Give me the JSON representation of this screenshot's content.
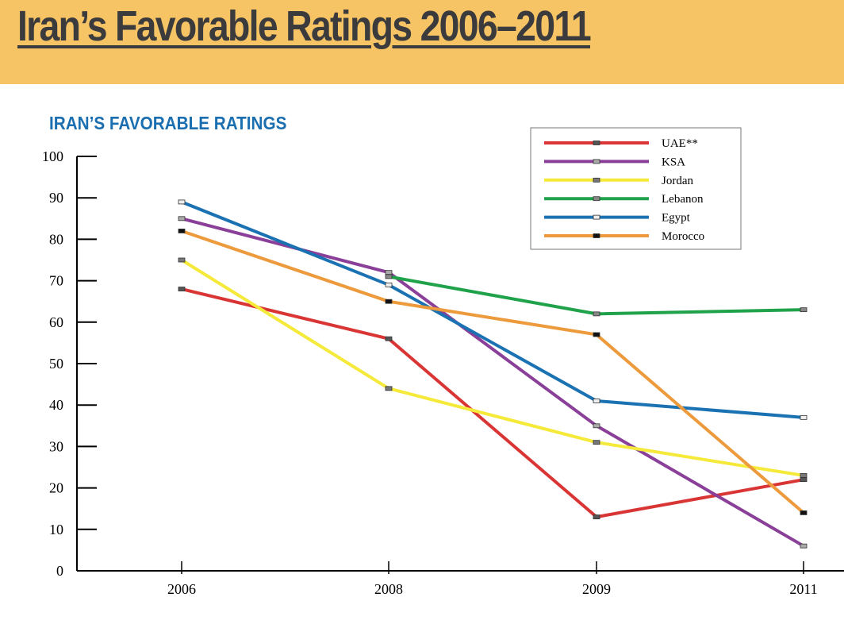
{
  "banner": {
    "title": "Iran’s Favorable Ratings 2006–2011"
  },
  "chart_data": {
    "type": "line",
    "title": "IRAN’S FAVORABLE RATINGS",
    "xlabel": "",
    "ylabel": "",
    "x": [
      "2006",
      "2008",
      "2009",
      "2011"
    ],
    "ylim": [
      0,
      100
    ],
    "yticks": [
      0,
      10,
      20,
      30,
      40,
      50,
      60,
      70,
      80,
      90,
      100
    ],
    "grid": false,
    "legend_position": "top-right",
    "series": [
      {
        "name": "UAE**",
        "color": "#d93535",
        "marker": "#555555",
        "values": [
          68,
          56,
          13,
          22
        ]
      },
      {
        "name": "KSA",
        "color": "#8a3f98",
        "marker": "#aaaaaa",
        "values": [
          85,
          72,
          35,
          6
        ]
      },
      {
        "name": "Jordan",
        "color": "#f5e93a",
        "marker": "#777777",
        "values": [
          75,
          44,
          31,
          23
        ]
      },
      {
        "name": "Lebanon",
        "color": "#1fa24a",
        "marker": "#888888",
        "values": [
          null,
          71,
          62,
          63
        ]
      },
      {
        "name": "Egypt",
        "color": "#1a72b2",
        "marker": "#eeeeee",
        "values": [
          89,
          69,
          41,
          37
        ]
      },
      {
        "name": "Morocco",
        "color": "#ec9a3c",
        "marker": "#111111",
        "values": [
          82,
          65,
          57,
          14
        ]
      }
    ]
  }
}
